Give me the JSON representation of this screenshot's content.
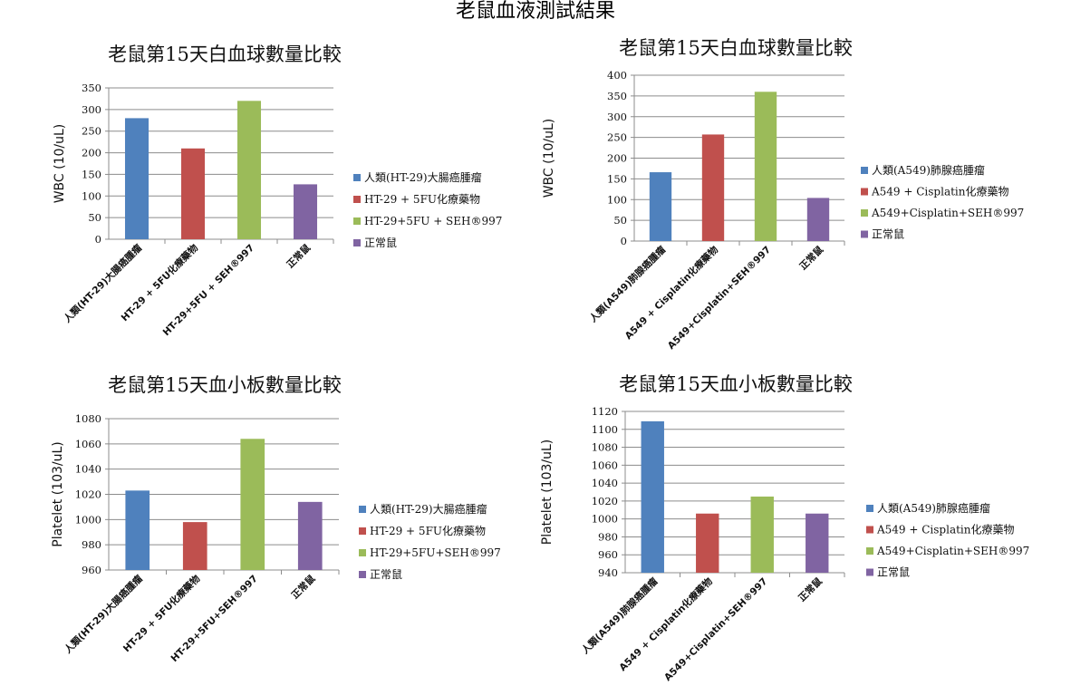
{
  "page": {
    "title": "老鼠血液測試結果"
  },
  "chart_data": [
    {
      "type": "bar",
      "title": "老鼠第15天白血球數量比較",
      "ylabel": "WBC (10/uL)",
      "xlabel": "",
      "ylim": [
        0,
        350
      ],
      "ytick_step": 50,
      "grid": true,
      "categories": [
        "人類(HT-29)大腸癌腫瘤",
        "HT-29 + 5FU化療藥物",
        "HT-29+5FU + SEH®997",
        "正常鼠"
      ],
      "values": [
        280,
        210,
        320,
        127
      ],
      "colors": [
        "#4f81bd",
        "#c0504d",
        "#9bbb59",
        "#8064a2"
      ],
      "legend_position": "right",
      "legend": [
        "人類(HT-29)大腸癌腫瘤",
        "HT-29 + 5FU化療藥物",
        "HT-29+5FU + SEH®997",
        "正常鼠"
      ]
    },
    {
      "type": "bar",
      "title": "老鼠第15天白血球數量比較",
      "ylabel": "WBC (10/uL)",
      "xlabel": "",
      "ylim": [
        0,
        400
      ],
      "ytick_step": 50,
      "grid": true,
      "categories": [
        "人類(A549)肺腺癌腫瘤",
        "A549 + Cisplatin化療藥物",
        "A549+Cisplatin+SEH®997",
        "正常鼠"
      ],
      "values": [
        166,
        257,
        360,
        104
      ],
      "colors": [
        "#4f81bd",
        "#c0504d",
        "#9bbb59",
        "#8064a2"
      ],
      "legend_position": "right",
      "legend": [
        "人類(A549)肺腺癌腫瘤",
        "A549 + Cisplatin化療藥物",
        "A549+Cisplatin+SEH®997",
        "正常鼠"
      ]
    },
    {
      "type": "bar",
      "title": "老鼠第15天血小板數量比較",
      "ylabel": "Platelet (103/uL)",
      "xlabel": "",
      "ylim": [
        960,
        1080
      ],
      "ytick_step": 20,
      "grid": true,
      "categories": [
        "人類(HT-29)大腸癌腫瘤",
        "HT-29 + 5FU化療藥物",
        "HT-29+5FU+SEH®997",
        "正常鼠"
      ],
      "values": [
        1023,
        998,
        1064,
        1014
      ],
      "colors": [
        "#4f81bd",
        "#c0504d",
        "#9bbb59",
        "#8064a2"
      ],
      "legend_position": "right",
      "legend": [
        "人類(HT-29)大腸癌腫瘤",
        "HT-29 + 5FU化療藥物",
        "HT-29+5FU+SEH®997",
        "正常鼠"
      ]
    },
    {
      "type": "bar",
      "title": "老鼠第15天血小板數量比較",
      "ylabel": "Platelet (103/uL)",
      "xlabel": "",
      "ylim": [
        940,
        1120
      ],
      "ytick_step": 20,
      "grid": true,
      "categories": [
        "人類(A549)肺腺癌腫瘤",
        "A549 + Cisplatin化療藥物",
        "A549+Cisplatin+SEH®997",
        "正常鼠"
      ],
      "values": [
        1109,
        1006,
        1025,
        1006
      ],
      "colors": [
        "#4f81bd",
        "#c0504d",
        "#9bbb59",
        "#8064a2"
      ],
      "legend_position": "right",
      "legend": [
        "人類(A549)肺腺癌腫瘤",
        "A549 + Cisplatin化療藥物",
        "A549+Cisplatin+SEH®997",
        "正常鼠"
      ]
    }
  ]
}
